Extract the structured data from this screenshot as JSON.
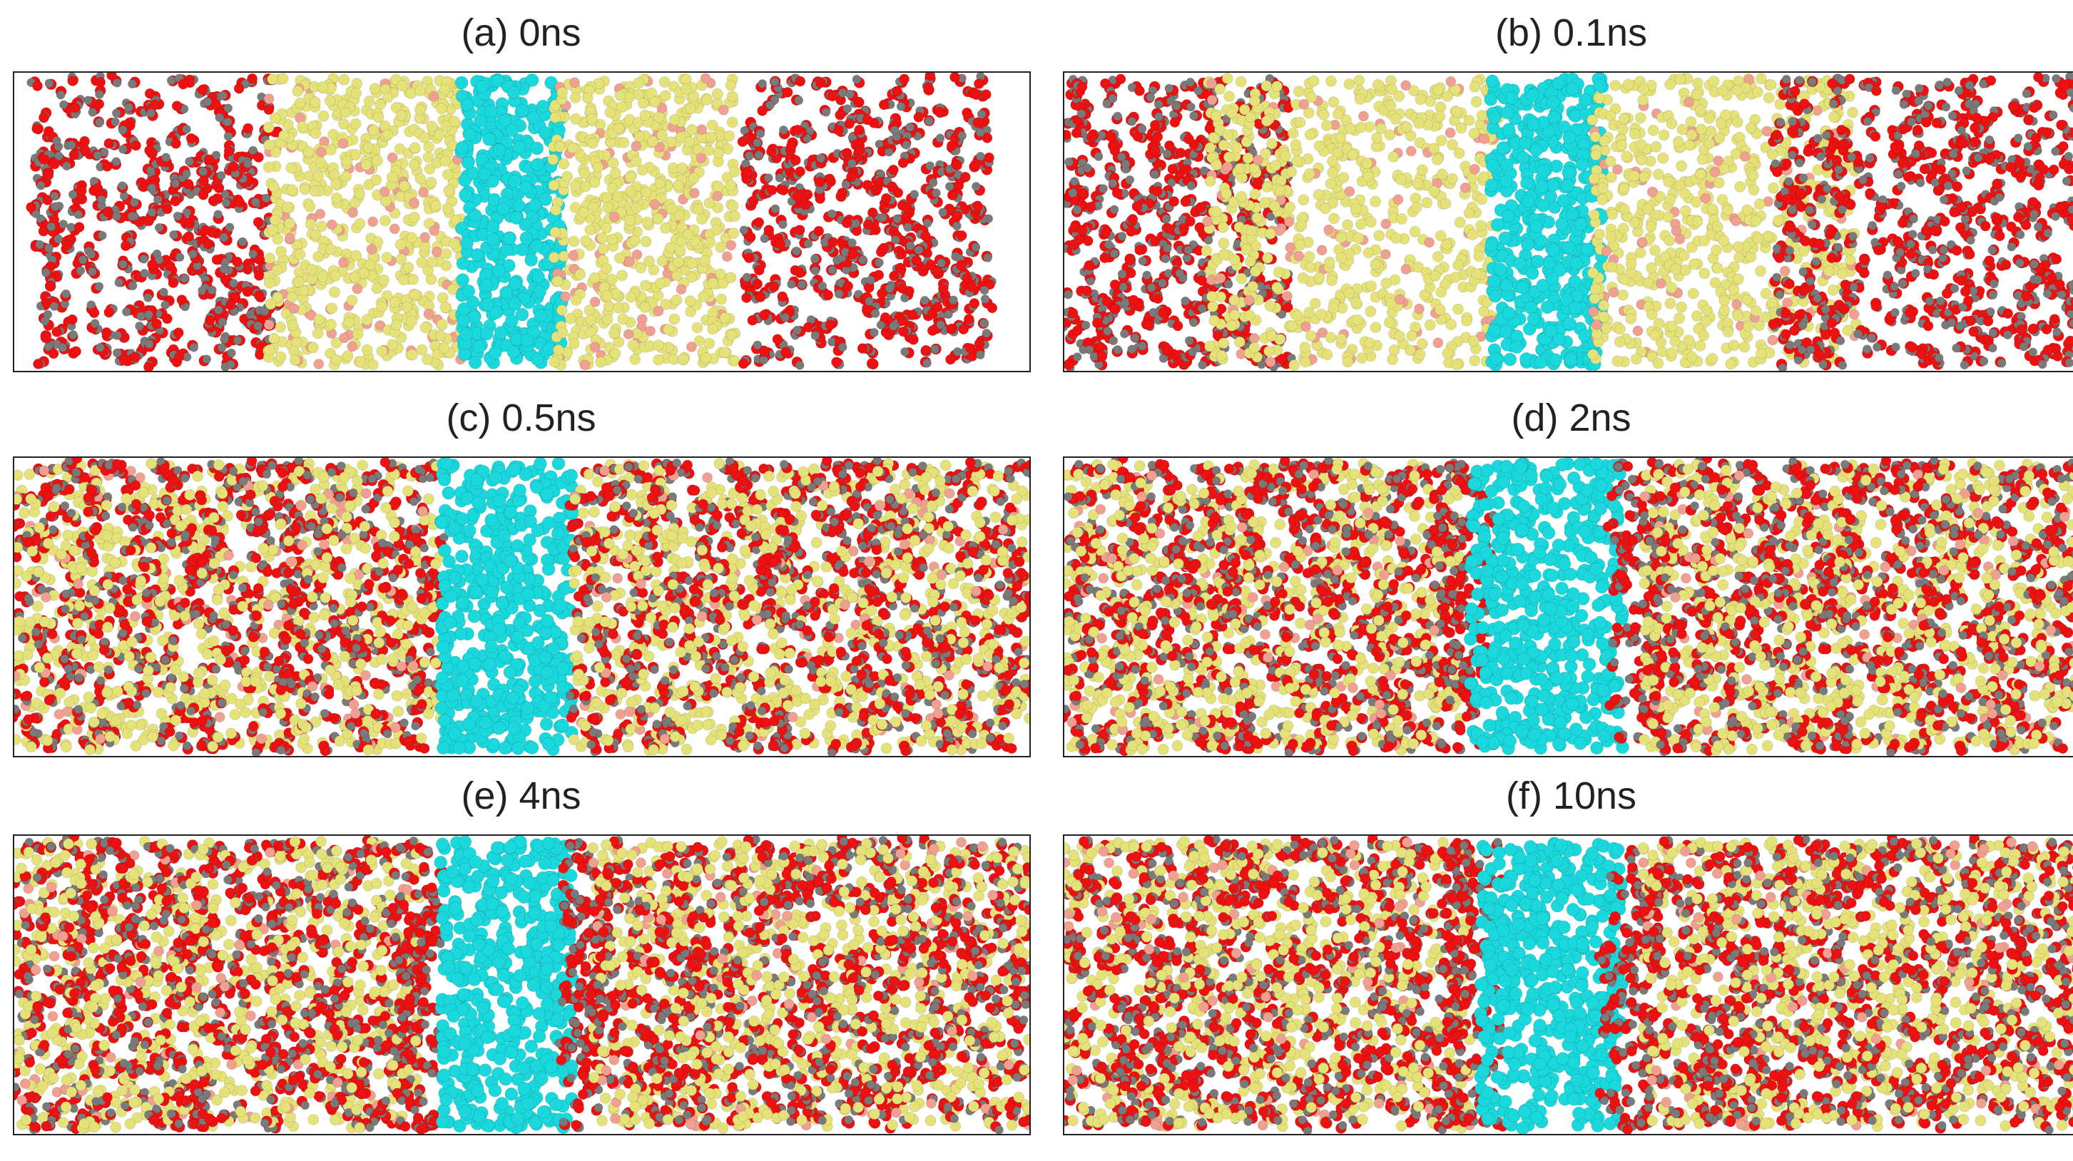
{
  "figure": {
    "panels": [
      {
        "id": "a",
        "label": "(a) 0ns",
        "time_ns": 0,
        "stage": "separated"
      },
      {
        "id": "b",
        "label": "(b) 0.1ns",
        "time_ns": 0.1,
        "stage": "early-mixing"
      },
      {
        "id": "c",
        "label": "(c) 0.5ns",
        "time_ns": 0.5,
        "stage": "partial-mixing"
      },
      {
        "id": "d",
        "label": "(d) 2ns",
        "time_ns": 2,
        "stage": "mixed"
      },
      {
        "id": "e",
        "label": "(e) 4ns",
        "time_ns": 4,
        "stage": "mixed"
      },
      {
        "id": "f",
        "label": "(f) 10ns",
        "time_ns": 10,
        "stage": "mixed"
      }
    ],
    "colors": {
      "red_atom": "#ee1111",
      "gray_atom": "#7a7a7a",
      "yellow_atom": "#e6e27a",
      "pink_atom": "#f0a090",
      "cyan_atom": "#1ad8dc",
      "box_border": "#222222"
    }
  }
}
